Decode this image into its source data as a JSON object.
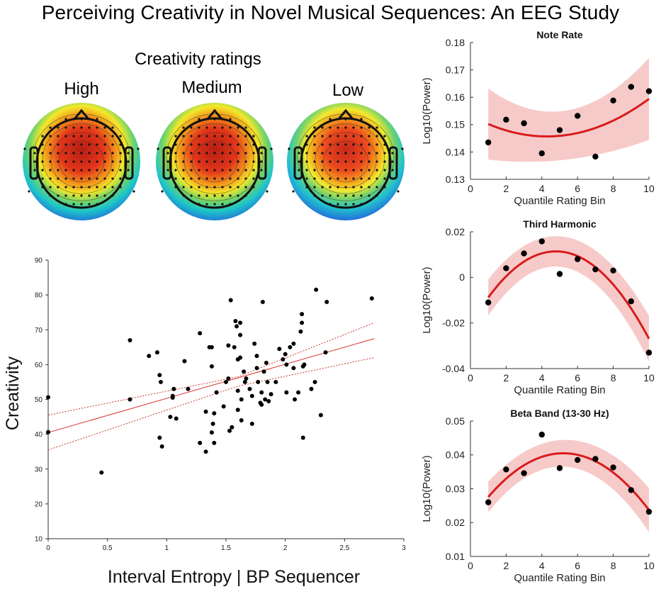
{
  "title": "Perceiving Creativity in Novel Musical Sequences: An EEG Study",
  "topomaps": {
    "heading": "Creativity ratings",
    "conditions": [
      "High",
      "Medium",
      "Low"
    ]
  },
  "chart_data": [
    {
      "type": "scatter",
      "name": "creativity-vs-entropy",
      "xlabel": "Interval Entropy | BP Sequencer",
      "ylabel": "Creativity",
      "xlim": [
        0,
        3
      ],
      "ylim": [
        10,
        90
      ],
      "xticks": [
        "0",
        "0.5",
        "1",
        "1.5",
        "2",
        "2.5",
        "3"
      ],
      "yticks": [
        "10",
        "20",
        "30",
        "40",
        "50",
        "60",
        "70",
        "80",
        "90"
      ],
      "fit": {
        "intercept": 40.5,
        "slope": 9.8,
        "ci_low": [
          [
            0,
            35.5
          ],
          [
            1.6,
            53.8
          ],
          [
            2.75,
            62.0
          ]
        ],
        "ci_high": [
          [
            0,
            45.5
          ],
          [
            1.6,
            56.5
          ],
          [
            2.75,
            72.0
          ]
        ]
      },
      "points": [
        [
          0,
          50.6
        ],
        [
          0,
          40.6
        ],
        [
          0.45,
          29
        ],
        [
          0.69,
          67
        ],
        [
          0.69,
          50
        ],
        [
          0.85,
          62.5
        ],
        [
          0.92,
          63.5
        ],
        [
          0.94,
          57
        ],
        [
          0.95,
          55
        ],
        [
          0.94,
          39
        ],
        [
          0.96,
          36.5
        ],
        [
          1.03,
          45
        ],
        [
          1.05,
          51
        ],
        [
          1.05,
          50.5
        ],
        [
          1.06,
          53
        ],
        [
          1.08,
          44.5
        ],
        [
          1.15,
          61
        ],
        [
          1.18,
          53
        ],
        [
          1.28,
          69
        ],
        [
          1.28,
          37.5
        ],
        [
          1.33,
          35
        ],
        [
          1.33,
          46.5
        ],
        [
          1.36,
          65
        ],
        [
          1.38,
          65
        ],
        [
          1.38,
          59.5
        ],
        [
          1.38,
          40.5
        ],
        [
          1.39,
          43
        ],
        [
          1.4,
          37.5
        ],
        [
          1.4,
          46
        ],
        [
          1.42,
          52
        ],
        [
          1.48,
          48
        ],
        [
          1.5,
          55
        ],
        [
          1.52,
          65.5
        ],
        [
          1.52,
          56
        ],
        [
          1.53,
          41
        ],
        [
          1.54,
          78.5
        ],
        [
          1.55,
          42
        ],
        [
          1.57,
          65
        ],
        [
          1.58,
          72.5
        ],
        [
          1.59,
          71
        ],
        [
          1.6,
          61.5
        ],
        [
          1.6,
          52.5
        ],
        [
          1.6,
          47
        ],
        [
          1.62,
          72
        ],
        [
          1.62,
          68.5
        ],
        [
          1.62,
          62
        ],
        [
          1.63,
          50
        ],
        [
          1.63,
          44
        ],
        [
          1.65,
          58
        ],
        [
          1.66,
          55
        ],
        [
          1.67,
          56
        ],
        [
          1.7,
          53
        ],
        [
          1.72,
          51
        ],
        [
          1.72,
          43
        ],
        [
          1.74,
          66
        ],
        [
          1.76,
          59
        ],
        [
          1.76,
          62.5
        ],
        [
          1.77,
          55
        ],
        [
          1.79,
          49
        ],
        [
          1.8,
          48.5
        ],
        [
          1.8,
          52
        ],
        [
          1.81,
          78
        ],
        [
          1.82,
          58
        ],
        [
          1.83,
          50
        ],
        [
          1.84,
          60.5
        ],
        [
          1.85,
          55
        ],
        [
          1.86,
          49.5
        ],
        [
          1.88,
          51.5
        ],
        [
          1.92,
          55
        ],
        [
          1.95,
          64.5
        ],
        [
          1.98,
          61.5
        ],
        [
          2,
          63
        ],
        [
          2.01,
          60
        ],
        [
          2.01,
          52
        ],
        [
          2.04,
          65
        ],
        [
          2.07,
          66
        ],
        [
          2.07,
          59
        ],
        [
          2.08,
          50
        ],
        [
          2.11,
          52
        ],
        [
          2.13,
          69.5
        ],
        [
          2.14,
          74.5
        ],
        [
          2.14,
          72
        ],
        [
          2.15,
          59.5
        ],
        [
          2.15,
          39
        ],
        [
          2.16,
          60
        ],
        [
          2.22,
          53
        ],
        [
          2.25,
          55
        ],
        [
          2.26,
          81.5
        ],
        [
          2.3,
          45.5
        ],
        [
          2.34,
          63.5
        ],
        [
          2.35,
          78
        ],
        [
          2.73,
          79
        ]
      ]
    },
    {
      "type": "scatter",
      "name": "note-rate",
      "title": "Note Rate",
      "xlabel": "Quantile Rating Bin",
      "ylabel": "Log10(Power)",
      "xlim": [
        0,
        10
      ],
      "ylim": [
        0.13,
        0.18
      ],
      "xticks": [
        "0",
        "2",
        "4",
        "6",
        "8",
        "10"
      ],
      "yticks": [
        "0.13",
        "0.14",
        "0.15",
        "0.16",
        "0.17",
        "0.18"
      ],
      "x": [
        1,
        2,
        3,
        4,
        5,
        6,
        7,
        8,
        9,
        10
      ],
      "y": [
        0.1435,
        0.1518,
        0.1505,
        0.1395,
        0.148,
        0.1532,
        0.1383,
        0.1588,
        0.1638,
        0.1622
      ],
      "fit_quadratic": [
        0.1534,
        -0.0036,
        0.00042
      ],
      "ci_width": [
        0.013,
        0.004,
        0.015
      ]
    },
    {
      "type": "scatter",
      "name": "third-harmonic",
      "title": "Third Harmonic",
      "xlabel": "Quantile Rating Bin",
      "ylabel": "Log10(Power)",
      "xlim": [
        0,
        10
      ],
      "ylim": [
        -0.04,
        0.02
      ],
      "xticks": [
        "0",
        "2",
        "4",
        "6",
        "8",
        "10"
      ],
      "yticks": [
        "-0.04",
        "-0.02",
        "0",
        "0.02"
      ],
      "x": [
        1,
        2,
        3,
        4,
        5,
        6,
        7,
        8,
        9,
        10
      ],
      "y": [
        -0.011,
        0.004,
        0.0105,
        0.0158,
        0.0015,
        0.008,
        0.0035,
        0.003,
        -0.0105,
        -0.033
      ],
      "fit_quadratic": [
        -0.0209,
        0.0135,
        -0.00141
      ],
      "ci_width": [
        0.008,
        0.0045,
        0.01
      ]
    },
    {
      "type": "scatter",
      "name": "beta-band",
      "title": "Beta Band (13-30 Hz)",
      "xlabel": "Quantile Rating Bin",
      "ylabel": "Log10(Power)",
      "xlim": [
        0,
        10
      ],
      "ylim": [
        0.01,
        0.05
      ],
      "xticks": [
        "0",
        "2",
        "4",
        "6",
        "8",
        "10"
      ],
      "yticks": [
        "0.01",
        "0.02",
        "0.03",
        "0.04",
        "0.05"
      ],
      "x": [
        1,
        2,
        3,
        4,
        5,
        6,
        7,
        8,
        9,
        10
      ],
      "y": [
        0.026,
        0.0357,
        0.0346,
        0.046,
        0.0361,
        0.0385,
        0.0388,
        0.0363,
        0.0296,
        0.0232
      ],
      "fit_quadratic": [
        0.0207,
        0.0076,
        -0.00073
      ],
      "ci_width": [
        0.0045,
        0.0025,
        0.0065
      ]
    }
  ]
}
